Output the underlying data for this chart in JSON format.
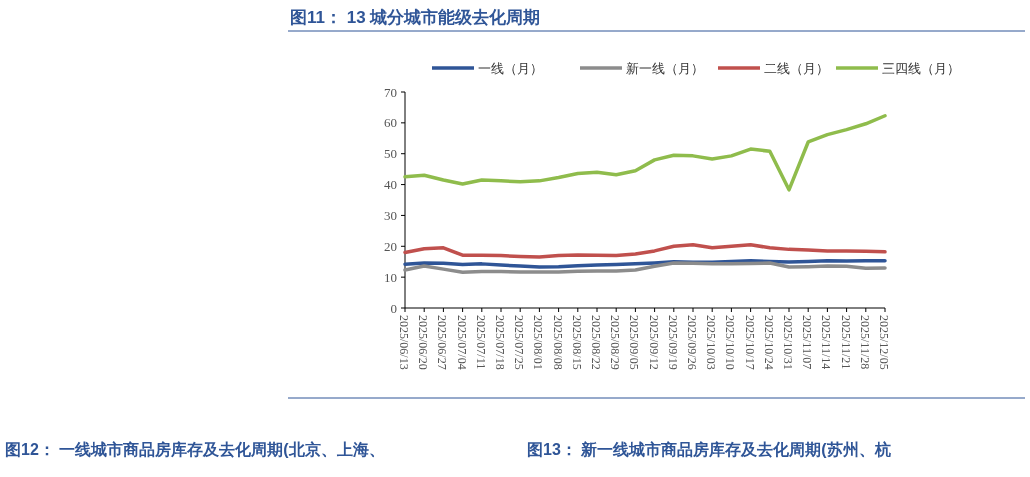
{
  "chart_data": {
    "type": "line",
    "title": "图11：  13 城分城市能级去化周期",
    "categories": [
      "2025/06/13",
      "2025/06/20",
      "2025/06/27",
      "2025/07/04",
      "2025/07/11",
      "2025/07/18",
      "2025/07/25",
      "2025/08/01",
      "2025/08/08",
      "2025/08/15",
      "2025/08/22",
      "2025/08/29",
      "2025/09/05",
      "2025/09/12",
      "2025/09/19",
      "2025/09/26",
      "2025/10/03",
      "2025/10/10",
      "2025/10/17",
      "2025/10/24",
      "2025/10/31",
      "2025/11/07",
      "2025/11/14",
      "2025/11/21",
      "2025/11/28",
      "2025/12/05"
    ],
    "series": [
      {
        "name": "一线（月）",
        "color": "#2f5597",
        "values": [
          14.2,
          14.6,
          14.5,
          14.1,
          14.3,
          13.9,
          13.6,
          13.3,
          13.4,
          13.7,
          13.9,
          14.1,
          14.3,
          14.6,
          15,
          14.8,
          14.8,
          15.1,
          15.3,
          15.1,
          14.9,
          15.1,
          15.3,
          15.2,
          15.3,
          15.3
        ]
      },
      {
        "name": "新一线（月）",
        "color": "#8c8c8c",
        "values": [
          12.3,
          13.6,
          12.6,
          11.6,
          11.8,
          11.8,
          11.7,
          11.7,
          11.7,
          11.9,
          12,
          12,
          12.3,
          13.5,
          14.6,
          14.5,
          14.3,
          14.3,
          14.4,
          14.6,
          13.3,
          13.4,
          13.6,
          13.5,
          12.9,
          13
        ]
      },
      {
        "name": "二线（月）",
        "color": "#c0504d",
        "values": [
          18,
          19.2,
          19.5,
          17.1,
          17.1,
          17,
          16.7,
          16.5,
          17,
          17.2,
          17.1,
          17,
          17.5,
          18.5,
          20,
          20.5,
          19.5,
          20,
          20.5,
          19.5,
          19,
          18.8,
          18.5,
          18.5,
          18.4,
          18.2
        ]
      },
      {
        "name": "三四线（月）",
        "color": "#8fbc4c",
        "values": [
          42.5,
          43,
          41.5,
          40.2,
          41.5,
          41.2,
          40.9,
          41.2,
          42.3,
          43.6,
          44,
          43.2,
          44.5,
          48,
          49.5,
          49.3,
          48.3,
          49.3,
          51.5,
          50.8,
          38.3,
          53.8,
          56.2,
          57.8,
          59.7,
          62.3
        ]
      }
    ],
    "ylim": [
      0,
      70
    ],
    "yticks": [
      0,
      10,
      20,
      30,
      40,
      50,
      60,
      70
    ],
    "grid": false,
    "legend": "top",
    "marker": "none",
    "line_style": "solid",
    "annotations": [
      "图12：  一线城市商品房库存及去化周期(北京、上海、",
      "图13：  新一线城市商品房库存及去化周期(苏州、杭"
    ]
  }
}
